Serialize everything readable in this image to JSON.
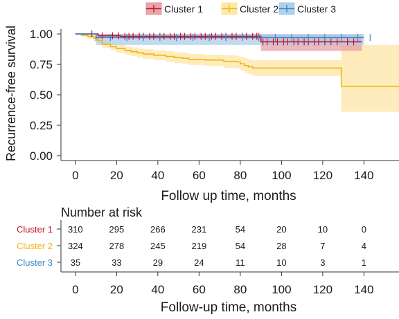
{
  "chart_data": [
    {
      "type": "line",
      "subtype": "kaplan-meier",
      "title": "",
      "xlabel": "Follow up time, months",
      "ylabel": "Recurrence-free survival",
      "xlim": [
        -7,
        157
      ],
      "ylim": [
        -0.04,
        1.04
      ],
      "xticks": [
        "0",
        "20",
        "40",
        "60",
        "80",
        "100",
        "120",
        "140"
      ],
      "yticks": [
        "0.00",
        "0.25",
        "0.50",
        "0.75",
        "1.00"
      ],
      "grid": false,
      "legend_position": "top",
      "series": [
        {
          "name": "Cluster 1",
          "color": "#c0182a",
          "band_color": "#e59aa2",
          "x": [
            0,
            11,
            22,
            90,
            139
          ],
          "y": [
            1.0,
            0.985,
            0.98,
            0.935,
            0.935
          ],
          "lower": [
            1.0,
            0.97,
            0.96,
            0.86,
            0.86
          ],
          "upper": [
            1.0,
            1.0,
            1.0,
            0.995,
            0.995
          ],
          "censor_x": [
            8,
            13,
            18,
            21,
            24,
            26,
            28,
            31,
            33,
            36,
            38,
            41,
            43,
            46,
            48,
            51,
            53,
            56,
            58,
            61,
            63,
            66,
            68,
            71,
            73,
            76,
            78,
            81,
            83,
            86,
            88,
            89,
            91,
            93,
            96,
            98,
            101,
            103,
            106,
            108,
            111,
            113,
            116,
            118,
            121,
            124,
            127,
            132,
            135
          ]
        },
        {
          "name": "Cluster 2",
          "color": "#f0b416",
          "band_color": "#fde4a0",
          "x": [
            0,
            3,
            6,
            9,
            11,
            13,
            17,
            20,
            24,
            27,
            30,
            33,
            38,
            44,
            48,
            52,
            55,
            63,
            72,
            78,
            80,
            82,
            84,
            86,
            129,
            157
          ],
          "y": [
            1.0,
            0.99,
            0.98,
            0.965,
            0.945,
            0.915,
            0.895,
            0.88,
            0.865,
            0.855,
            0.845,
            0.835,
            0.825,
            0.815,
            0.805,
            0.8,
            0.79,
            0.785,
            0.775,
            0.77,
            0.755,
            0.74,
            0.73,
            0.72,
            0.57,
            0.57
          ],
          "lower": [
            1.0,
            0.975,
            0.96,
            0.94,
            0.92,
            0.885,
            0.865,
            0.845,
            0.83,
            0.82,
            0.805,
            0.795,
            0.785,
            0.77,
            0.76,
            0.755,
            0.745,
            0.735,
            0.72,
            0.715,
            0.7,
            0.68,
            0.67,
            0.655,
            0.36,
            0.36
          ],
          "upper": [
            1.0,
            1.0,
            1.0,
            0.99,
            0.97,
            0.945,
            0.925,
            0.915,
            0.9,
            0.89,
            0.88,
            0.875,
            0.865,
            0.86,
            0.85,
            0.845,
            0.835,
            0.83,
            0.825,
            0.82,
            0.81,
            0.8,
            0.79,
            0.785,
            0.91,
            0.91
          ]
        },
        {
          "name": "Cluster 3",
          "color": "#3d86c6",
          "band_color": "#a8cbea",
          "x": [
            0,
            10,
            140
          ],
          "y": [
            1.0,
            0.97,
            0.97
          ],
          "lower": [
            1.0,
            0.91,
            0.91
          ],
          "upper": [
            1.0,
            1.0,
            1.0
          ],
          "censor_x": [
            10,
            17,
            25,
            33,
            41,
            49,
            57,
            65,
            73,
            81,
            89,
            97,
            105,
            113,
            121,
            129,
            137,
            143
          ]
        }
      ]
    },
    {
      "type": "table",
      "title": "Number at risk",
      "xlabel": "Follow-up time, months",
      "xlim": [
        -7,
        157
      ],
      "xticks": [
        "0",
        "20",
        "40",
        "60",
        "80",
        "100",
        "120",
        "140"
      ],
      "timepoints": [
        0,
        20,
        40,
        60,
        80,
        100,
        120,
        140
      ],
      "rows": [
        {
          "name": "Cluster 1",
          "color": "#c0182a",
          "values": [
            "310",
            "295",
            "266",
            "231",
            "54",
            "20",
            "10",
            "0"
          ]
        },
        {
          "name": "Cluster 2",
          "color": "#f0b416",
          "values": [
            "324",
            "278",
            "245",
            "219",
            "54",
            "28",
            "7",
            "4"
          ]
        },
        {
          "name": "Cluster 3",
          "color": "#3d86c6",
          "values": [
            "35",
            "33",
            "29",
            "24",
            "11",
            "10",
            "3",
            "1"
          ]
        }
      ]
    }
  ]
}
